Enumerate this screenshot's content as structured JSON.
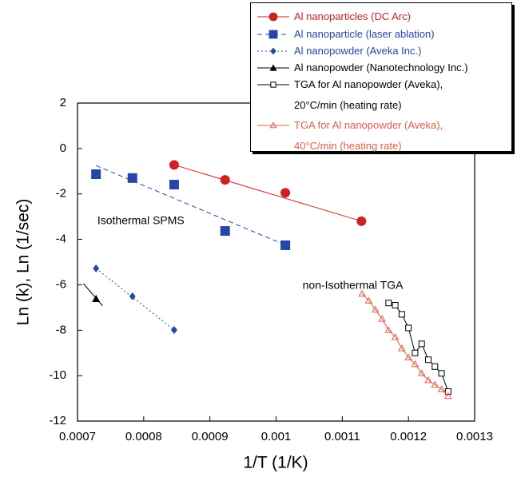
{
  "chart_data": {
    "type": "scatter",
    "x_label": "1/T (1/K)",
    "y_label": "Ln (k), Ln (1/sec)",
    "xlim": [
      0.0007,
      0.0013
    ],
    "xticks": [
      0.0007,
      0.0008,
      0.0009,
      0.001,
      0.0011,
      0.0012,
      0.0013
    ],
    "ylim": [
      -12,
      2
    ],
    "yticks": [
      2,
      0,
      -2,
      -4,
      -6,
      -8,
      -10,
      -12
    ],
    "annotations": [
      {
        "text": "Isothermal SPMS",
        "x": 0.00073,
        "y": -3.2
      },
      {
        "text": "non-Isothermal TGA",
        "x": 0.00104,
        "y": -6.05
      }
    ],
    "series": [
      {
        "name": "Al nanoparticles (DC Arc)",
        "color": "#cc2222",
        "marker": "circle",
        "line": "solid",
        "connect": false,
        "x": [
          0.000846,
          0.000923,
          0.001014,
          0.001129
        ],
        "y": [
          -0.72,
          -1.38,
          -1.95,
          -3.2
        ],
        "fit": {
          "x": [
            0.000846,
            0.001129
          ],
          "y": [
            -0.72,
            -3.2
          ]
        }
      },
      {
        "name": "Al nanoparticle (laser ablation)",
        "color": "#2447a8",
        "marker": "square",
        "line": "dashed",
        "connect": false,
        "x": [
          0.000728,
          0.000783,
          0.000846,
          0.000923,
          0.001014
        ],
        "y": [
          -1.13,
          -1.3,
          -1.59,
          -3.63,
          -4.26
        ],
        "fit": {
          "x": [
            0.000728,
            0.001014
          ],
          "y": [
            -0.75,
            -4.25
          ]
        }
      },
      {
        "name": "Al nanopowder (Aveka Inc.)",
        "color": "#2447a8",
        "marker": "diamond",
        "line": "dotted",
        "connect": false,
        "x": [
          0.000728,
          0.000783,
          0.000846
        ],
        "y": [
          -5.28,
          -6.51,
          -7.99
        ],
        "fit": {
          "x": [
            0.000728,
            0.000846
          ],
          "y": [
            -5.28,
            -7.99
          ]
        }
      },
      {
        "name": "Al nanopowder (Nanotechnology Inc.)",
        "color": "#000000",
        "marker": "triangle",
        "line": "solid",
        "connect": false,
        "x": [
          0.000728
        ],
        "y": [
          -6.62
        ],
        "fit": {
          "x": [
            0.000709,
            0.000738
          ],
          "y": [
            -5.95,
            -6.93
          ]
        }
      },
      {
        "name": "TGA for Al nanopowder (Aveka),\n20°C/min (heating rate)",
        "color": "#000000",
        "marker": "open-square",
        "line": "solid",
        "connect": true,
        "x": [
          0.00117,
          0.00118,
          0.00119,
          0.0012,
          0.00121,
          0.00122,
          0.00123,
          0.00124,
          0.00125,
          0.00126
        ],
        "y": [
          -6.8,
          -6.9,
          -7.3,
          -7.9,
          -9.0,
          -8.6,
          -9.3,
          -9.6,
          -9.9,
          -10.7
        ]
      },
      {
        "name": "TGA for Al nanopowder (Aveka),\n40°C/min (heating rate)",
        "color": "#e0604a",
        "marker": "open-triangle",
        "line": "solid",
        "connect": true,
        "x": [
          0.00113,
          0.00114,
          0.00115,
          0.00116,
          0.00117,
          0.00118,
          0.00119,
          0.0012,
          0.00121,
          0.00122,
          0.00123,
          0.00124,
          0.00125,
          0.00126
        ],
        "y": [
          -6.4,
          -6.7,
          -7.1,
          -7.5,
          -8.0,
          -8.3,
          -8.8,
          -9.2,
          -9.5,
          -9.9,
          -10.2,
          -10.4,
          -10.6,
          -10.9
        ]
      }
    ]
  }
}
